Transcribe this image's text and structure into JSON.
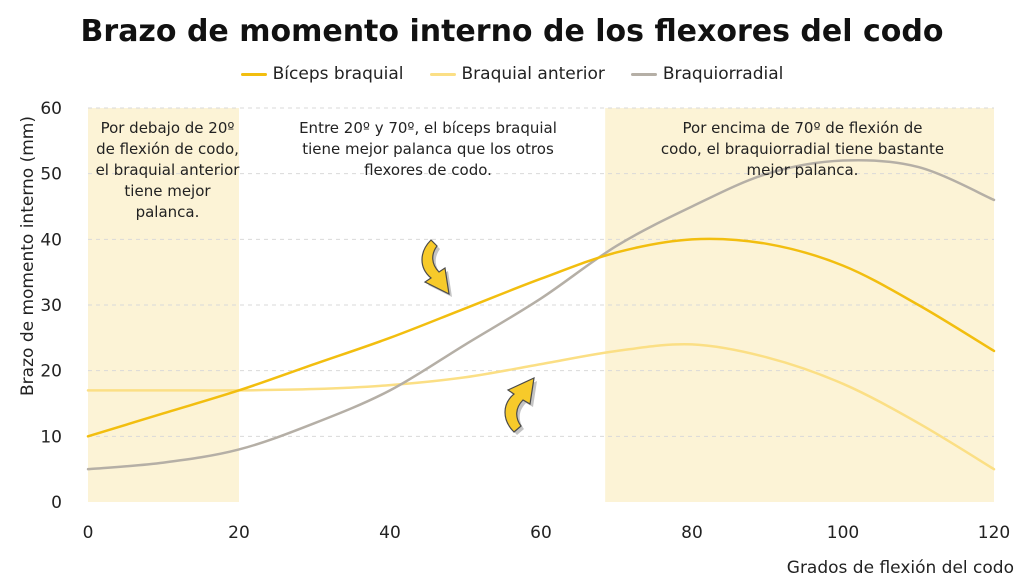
{
  "chart_data": {
    "type": "line",
    "title": "Brazo de momento interno de los flexores del codo",
    "xlabel": "Grados de flexión del codo",
    "ylabel": "Brazo de momento interno (mm)",
    "xlim": [
      0,
      120
    ],
    "ylim": [
      0,
      60
    ],
    "x_ticks": [
      0,
      20,
      40,
      60,
      80,
      100,
      120
    ],
    "y_ticks": [
      0,
      10,
      20,
      30,
      40,
      50,
      60
    ],
    "grid": "horizontal dashed",
    "legend_position": "top",
    "x": [
      0,
      10,
      20,
      30,
      40,
      50,
      60,
      70,
      80,
      90,
      100,
      110,
      120
    ],
    "series": [
      {
        "name": "Bíceps braquial",
        "color": "#F2BE0F",
        "values": [
          10,
          13.5,
          17,
          21,
          25,
          29.5,
          34,
          38,
          40,
          39.3,
          36,
          30,
          23
        ]
      },
      {
        "name": "Braquial anterior",
        "color": "#FBDF85",
        "values": [
          17,
          17,
          17,
          17.2,
          17.8,
          19,
          21,
          23,
          24,
          22,
          18,
          12,
          5
        ]
      },
      {
        "name": "Braquiorradial",
        "color": "#B5AFA6",
        "values": [
          5,
          6,
          8,
          12,
          17,
          24,
          31,
          39,
          45,
          50,
          52,
          51,
          46
        ]
      }
    ],
    "shaded_regions": [
      {
        "from": 0,
        "to": 20,
        "color": "#FCF3D6"
      },
      {
        "from": 68.5,
        "to": 120,
        "color": "#FCF3D6"
      }
    ],
    "annotations": [
      {
        "id": "left",
        "text": "Por debajo de 20º de flexión de codo, el braquial anterior tiene mejor palanca."
      },
      {
        "id": "middle",
        "text": "Entre 20º y 70º, el bíceps braquial tiene mejor palanca que los otros flexores de codo."
      },
      {
        "id": "right",
        "text": "Por encima de 70º de flexión de codo, el braquiorradial tiene bastante mejor palanca."
      }
    ],
    "arrow_color": "#F7CA2A"
  }
}
